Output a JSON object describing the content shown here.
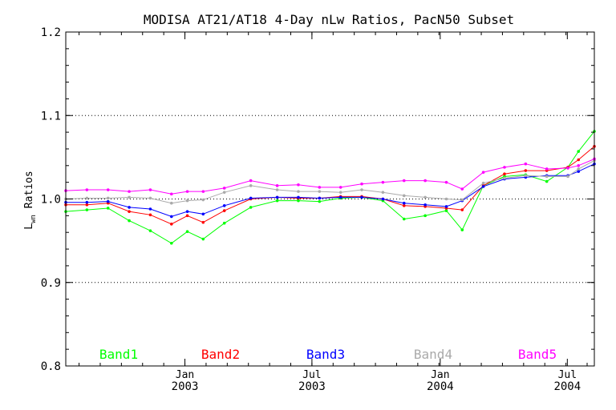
{
  "chart_data": {
    "type": "line",
    "title": "MODISA AT21/AT18 4-Day nLw Ratios, PacN50 Subset",
    "ylabel_main": "L",
    "ylabel_sub": "wn",
    "ylabel_rest": " Ratios",
    "xlabel": "",
    "ylim": [
      0.8,
      1.2
    ],
    "xlim": [
      0,
      1
    ],
    "grid": "horizontal dotted at 0.9, 1.0, 1.1",
    "legend": "bottom, horizontal",
    "y_ticks": [
      {
        "value": 0.8,
        "label": "0.8"
      },
      {
        "value": 0.9,
        "label": "0.9"
      },
      {
        "value": 1.0,
        "label": "1.0"
      },
      {
        "value": 1.1,
        "label": "1.1"
      },
      {
        "value": 1.2,
        "label": "1.2"
      }
    ],
    "gridlines": [
      0.9,
      1.0,
      1.1
    ],
    "x_ticks": [
      {
        "pos": 0.2254,
        "line1": "Jan",
        "line2": "2003"
      },
      {
        "pos": 0.4657,
        "line1": "Jul",
        "line2": "2003"
      },
      {
        "pos": 0.7084,
        "line1": "Jan",
        "line2": "2004"
      },
      {
        "pos": 0.9489,
        "line1": "Jul",
        "line2": "2004"
      }
    ],
    "x": [
      0.0,
      0.04,
      0.08,
      0.12,
      0.16,
      0.2,
      0.23,
      0.26,
      0.3,
      0.35,
      0.4,
      0.44,
      0.48,
      0.52,
      0.56,
      0.6,
      0.64,
      0.68,
      0.72,
      0.75,
      0.79,
      0.83,
      0.87,
      0.91,
      0.95,
      0.97,
      1.0
    ],
    "series": [
      {
        "name": "Band1",
        "color": "#00ff00",
        "values": [
          0.985,
          0.987,
          0.989,
          0.974,
          0.962,
          0.947,
          0.961,
          0.952,
          0.971,
          0.99,
          0.998,
          0.998,
          0.997,
          1.001,
          1.002,
          0.998,
          0.976,
          0.98,
          0.986,
          0.963,
          1.016,
          1.027,
          1.029,
          1.021,
          1.038,
          1.057,
          1.081
        ]
      },
      {
        "name": "Band2",
        "color": "#ff0000",
        "values": [
          0.993,
          0.993,
          0.995,
          0.985,
          0.981,
          0.97,
          0.98,
          0.972,
          0.986,
          1.0,
          1.002,
          1.001,
          1.001,
          1.003,
          1.003,
          1.0,
          0.992,
          0.991,
          0.989,
          0.987,
          1.016,
          1.03,
          1.034,
          1.034,
          1.038,
          1.047,
          1.063
        ]
      },
      {
        "name": "Band3",
        "color": "#0000ff",
        "values": [
          0.996,
          0.996,
          0.997,
          0.99,
          0.988,
          0.979,
          0.985,
          0.982,
          0.992,
          1.001,
          1.002,
          1.002,
          1.001,
          1.002,
          1.002,
          1.0,
          0.995,
          0.993,
          0.991,
          0.998,
          1.015,
          1.024,
          1.026,
          1.028,
          1.028,
          1.033,
          1.042
        ]
      },
      {
        "name": "Band4",
        "color": "#aaaaaa",
        "values": [
          1.0,
          1.001,
          1.001,
          1.002,
          1.001,
          0.995,
          0.998,
          0.999,
          1.008,
          1.016,
          1.011,
          1.009,
          1.009,
          1.008,
          1.011,
          1.008,
          1.004,
          1.002,
          1.0,
          0.999,
          1.019,
          1.025,
          1.028,
          1.027,
          1.027,
          1.036,
          1.046
        ]
      },
      {
        "name": "Band5",
        "color": "#ff00ff",
        "values": [
          1.01,
          1.011,
          1.011,
          1.009,
          1.011,
          1.006,
          1.009,
          1.009,
          1.013,
          1.022,
          1.016,
          1.017,
          1.014,
          1.014,
          1.018,
          1.02,
          1.022,
          1.022,
          1.02,
          1.012,
          1.032,
          1.038,
          1.042,
          1.036,
          1.037,
          1.04,
          1.048
        ]
      }
    ]
  }
}
